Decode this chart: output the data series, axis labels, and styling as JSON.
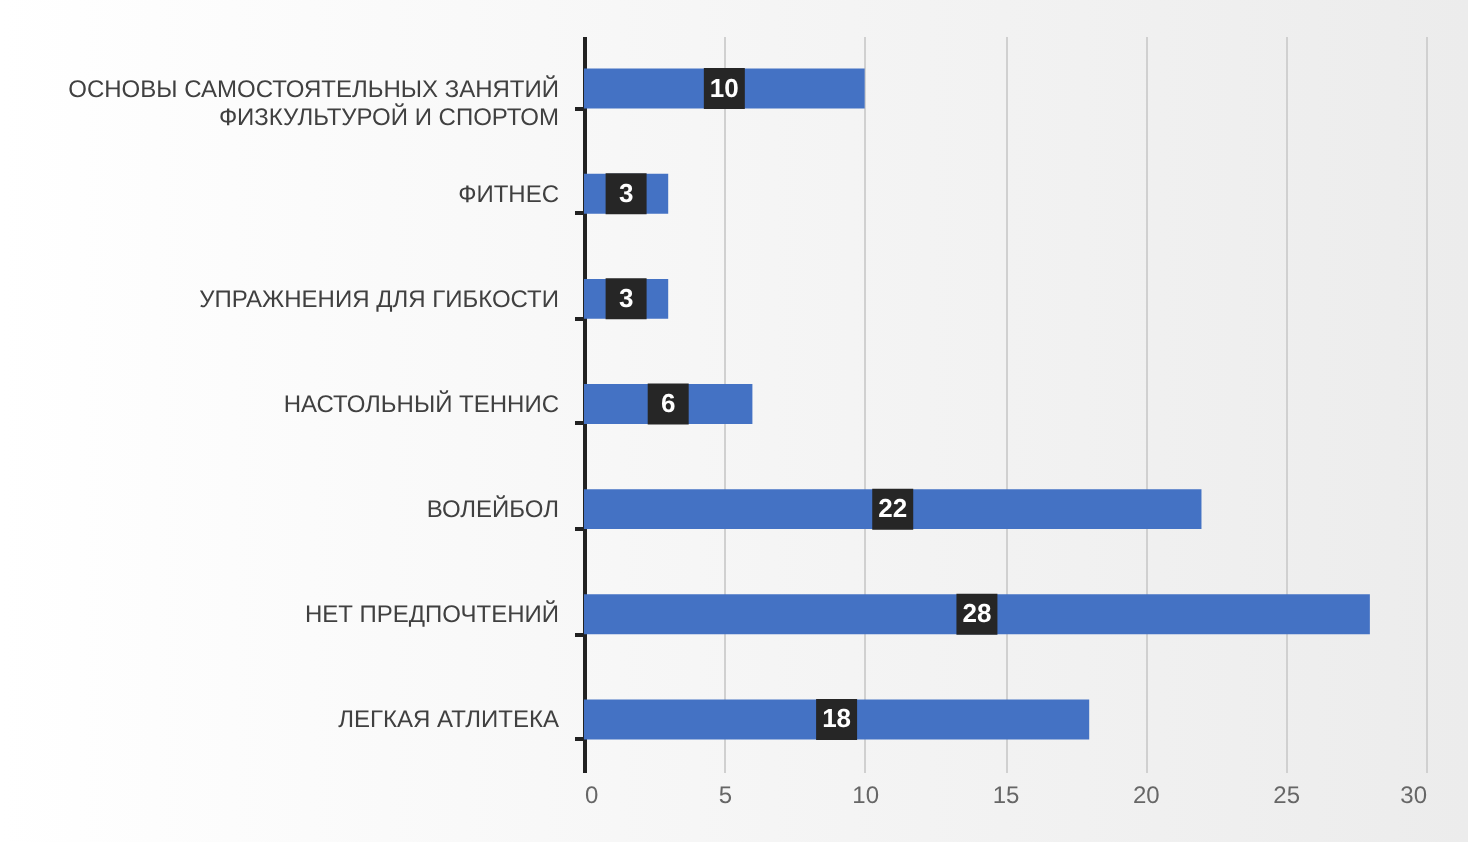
{
  "chart_data": {
    "type": "bar",
    "orientation": "horizontal",
    "categories": [
      "ОСНОВЫ САМОСТОЯТЕЛЬНЫХ ЗАНЯТИЙ ФИЗКУЛЬТУРОЙ И СПОРТОМ",
      "ФИТНЕС",
      "УПРАЖНЕНИЯ ДЛЯ ГИБКОСТИ",
      "НАСТОЛЬНЫЙ ТЕННИС",
      "ВОЛЕЙБОЛ",
      "НЕТ ПРЕДПОЧТЕНИЙ",
      "ЛЕГКАЯ АТЛИТЕКА"
    ],
    "values": [
      10,
      3,
      3,
      6,
      22,
      28,
      18
    ],
    "color": "#4472c4",
    "xlim": [
      0,
      30
    ],
    "xticks": [
      0,
      5,
      10,
      15,
      20,
      25,
      30
    ],
    "grid": "x",
    "data_labels": true
  }
}
